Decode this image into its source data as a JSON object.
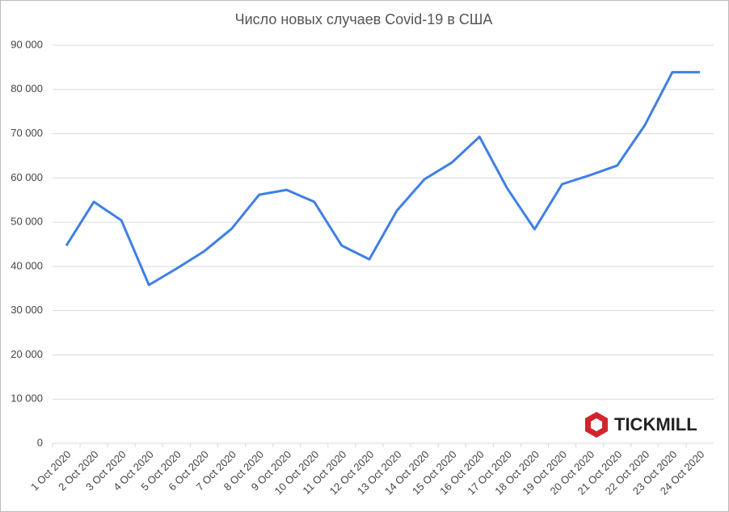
{
  "chart_data": {
    "type": "line",
    "title": "Число новых случаев Covid-19 в США",
    "categories": [
      "1 Oct 2020",
      "2 Oct 2020",
      "3 Oct 2020",
      "4 Oct 2020",
      "5 Oct 2020",
      "6 Oct 2020",
      "7 Oct 2020",
      "8 Oct 2020",
      "9 Oct 2020",
      "10 Oct 2020",
      "11 Oct 2020",
      "12 Oct 2020",
      "13 Oct 2020",
      "14 Oct 2020",
      "15 Oct 2020",
      "16 Oct 2020",
      "17 Oct 2020",
      "18 Oct 2020",
      "19 Oct 2020",
      "20 Oct 2020",
      "21 Oct 2020",
      "22 Oct 2020",
      "23 Oct 2020",
      "24 Oct 2020"
    ],
    "values": [
      44700,
      54600,
      50400,
      35800,
      39500,
      43400,
      48500,
      56200,
      57300,
      54600,
      44700,
      41600,
      52600,
      59700,
      63500,
      69300,
      57700,
      48400,
      58600,
      60600,
      62800,
      71900,
      83900,
      83900
    ],
    "color": "#3f7fe6",
    "ylim": [
      0,
      90000
    ],
    "yticks": [
      0,
      {
        "value": 10000,
        "label": "10 000"
      },
      {
        "value": 20000,
        "label": "20 000"
      },
      {
        "value": 30000,
        "label": "30 000"
      },
      {
        "value": 40000,
        "label": "40 000"
      },
      {
        "value": 50000,
        "label": "50 000"
      },
      {
        "value": 60000,
        "label": "60 000"
      },
      {
        "value": 70000,
        "label": "70 000"
      },
      {
        "value": 80000,
        "label": "80 000"
      },
      {
        "value": 90000,
        "label": "90 000"
      }
    ],
    "grid": true,
    "watermark": "TICKMILL"
  }
}
